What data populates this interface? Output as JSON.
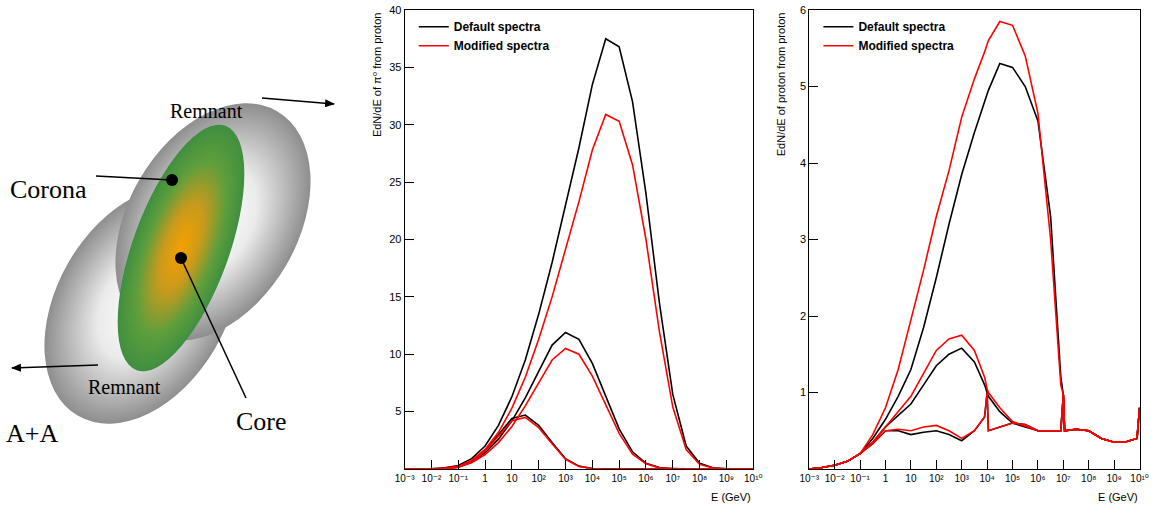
{
  "diagram": {
    "labels": {
      "corona": "Corona",
      "remnant_upper": "Remnant",
      "remnant_lower": "Remnant",
      "core": "Core",
      "collision": "A+A"
    }
  },
  "chart_data": [
    {
      "type": "line",
      "xlabel": "E (GeV)",
      "ylabel": "EdN/dE of π⁰ from proton",
      "log": "x",
      "grid": false,
      "legend": "upper left",
      "xlim": [
        0.001,
        10000000000
      ],
      "ylim": [
        0,
        40
      ],
      "xticks": [
        {
          "value": 0.001,
          "label": "10⁻³"
        },
        {
          "value": 0.01,
          "label": "10⁻²"
        },
        {
          "value": 0.1,
          "label": "10⁻¹"
        },
        1,
        10,
        {
          "value": 100,
          "label": "10²"
        },
        {
          "value": 1000,
          "label": "10³"
        },
        {
          "value": 10000,
          "label": "10⁴"
        },
        {
          "value": 100000,
          "label": "10⁵"
        },
        {
          "value": 1000000,
          "label": "10⁶"
        },
        {
          "value": 10000000,
          "label": "10⁷"
        },
        {
          "value": 100000000,
          "label": "10⁸"
        },
        {
          "value": 1000000000,
          "label": "10⁹"
        },
        {
          "value": 10000000000,
          "label": "10¹⁰"
        }
      ],
      "yticks": [
        5,
        10,
        15,
        20,
        25,
        30,
        35,
        40
      ],
      "x": [
        0.001,
        0.00316,
        0.01,
        0.0316,
        0.1,
        0.316,
        1,
        3.16,
        10,
        31.6,
        100,
        316,
        1000,
        3162,
        10000,
        31623,
        100000,
        316228,
        1000000,
        3162278,
        10000000,
        31622777,
        100000000,
        316227766,
        1000000000,
        3162277660,
        10000000000
      ],
      "series": [
        {
          "name": "Default spectra",
          "color": "#000000",
          "values": [
            0,
            0,
            0.02,
            0.1,
            0.3,
            0.9,
            2,
            3.8,
            6.3,
            9.5,
            13.5,
            18,
            23,
            28,
            33.5,
            37.5,
            36.8,
            32,
            24,
            14.5,
            6.5,
            2,
            0.5,
            0.1,
            0.02,
            0,
            0
          ]
        },
        {
          "name": "Default spectra",
          "color": "#000000",
          "values": [
            0,
            0,
            0.01,
            0.05,
            0.2,
            0.6,
            1.4,
            2.6,
            4.2,
            6.2,
            8.5,
            10.8,
            11.9,
            11.3,
            9.2,
            6.3,
            3.5,
            1.5,
            0.5,
            0.12,
            0.02,
            0,
            0,
            0,
            0,
            0,
            0
          ]
        },
        {
          "name": "Default spectra",
          "color": "#000000",
          "values": [
            0,
            0,
            0,
            0.02,
            0.15,
            0.6,
            1.6,
            3,
            4.4,
            4.7,
            3.8,
            2.3,
            0.9,
            0.25,
            0.04,
            0,
            0,
            0,
            0,
            0,
            0,
            0,
            0,
            0,
            0,
            0,
            0
          ]
        },
        {
          "name": "Modified spectra",
          "color": "#ff0000",
          "values": [
            0,
            0,
            0.02,
            0.08,
            0.25,
            0.75,
            1.7,
            3.2,
            5.3,
            8,
            11.3,
            15,
            19.2,
            23.3,
            27.8,
            30.9,
            30.3,
            26.5,
            20,
            12,
            5.4,
            1.7,
            0.4,
            0.08,
            0.02,
            0,
            0
          ]
        },
        {
          "name": "Modified spectra",
          "color": "#ff0000",
          "values": [
            0,
            0,
            0.01,
            0.05,
            0.18,
            0.55,
            1.25,
            2.3,
            3.7,
            5.5,
            7.5,
            9.5,
            10.5,
            10,
            8.1,
            5.6,
            3.1,
            1.3,
            0.45,
            0.1,
            0.02,
            0,
            0,
            0,
            0,
            0,
            0
          ]
        },
        {
          "name": "Modified spectra",
          "color": "#ff0000",
          "values": [
            0,
            0,
            0,
            0.02,
            0.15,
            0.58,
            1.55,
            2.9,
            4.2,
            4.5,
            3.6,
            2.2,
            0.85,
            0.23,
            0.04,
            0,
            0,
            0,
            0,
            0,
            0,
            0,
            0,
            0,
            0,
            0,
            0
          ]
        }
      ]
    },
    {
      "type": "line",
      "xlabel": "E (GeV)",
      "ylabel": "EdN/dE of proton from proton",
      "log": "x",
      "grid": false,
      "legend": "upper left",
      "xlim": [
        0.001,
        10000000000
      ],
      "ylim": [
        0,
        6
      ],
      "xticks": [
        {
          "value": 0.001,
          "label": "10⁻³"
        },
        {
          "value": 0.01,
          "label": "10⁻²"
        },
        {
          "value": 0.1,
          "label": "10⁻¹"
        },
        1,
        10,
        {
          "value": 100,
          "label": "10²"
        },
        {
          "value": 1000,
          "label": "10³"
        },
        {
          "value": 10000,
          "label": "10⁴"
        },
        {
          "value": 100000,
          "label": "10⁵"
        },
        {
          "value": 1000000,
          "label": "10⁶"
        },
        {
          "value": 10000000,
          "label": "10⁷"
        },
        {
          "value": 100000000,
          "label": "10⁸"
        },
        {
          "value": 1000000000,
          "label": "10⁹"
        },
        {
          "value": 10000000000,
          "label": "10¹⁰"
        }
      ],
      "yticks": [
        1,
        2,
        3,
        4,
        5,
        6
      ],
      "x": [
        0.001,
        0.00316,
        0.01,
        0.0316,
        0.1,
        0.316,
        1,
        3.16,
        10,
        31.6,
        100,
        316,
        1000,
        3162,
        7943,
        10000,
        11220,
        31623,
        100000,
        316228,
        1000000,
        3162278,
        7943282,
        10000000,
        11220185,
        31622777,
        100000000,
        316227766,
        1000000000,
        3162277660,
        7943282347,
        10000000000
      ],
      "series": [
        {
          "name": "Default spectra",
          "color": "#000000",
          "values": [
            0,
            0.02,
            0.05,
            0.1,
            0.2,
            0.4,
            0.65,
            0.95,
            1.3,
            1.85,
            2.5,
            3.2,
            3.85,
            4.4,
            4.8,
            4.9,
            4.95,
            5.3,
            5.25,
            5.0,
            4.55,
            3.3,
            1.2,
            0.97,
            0.5,
            0.52,
            0.5,
            0.4,
            0.35,
            0.36,
            0.4,
            0.8
          ]
        },
        {
          "name": "Default spectra",
          "color": "#000000",
          "values": [
            0,
            0.02,
            0.05,
            0.1,
            0.2,
            0.35,
            0.55,
            0.7,
            0.85,
            1.1,
            1.35,
            1.5,
            1.58,
            1.4,
            1.1,
            1.0,
            0.95,
            0.75,
            0.6,
            0.55,
            0.5,
            0.5,
            0.5,
            0.97,
            0.5,
            0.52,
            0.5,
            0.4,
            0.35,
            0.36,
            0.4,
            0.8
          ]
        },
        {
          "name": "Default spectra",
          "color": "#000000",
          "values": [
            0,
            0.02,
            0.05,
            0.1,
            0.2,
            0.33,
            0.5,
            0.5,
            0.45,
            0.48,
            0.5,
            0.45,
            0.37,
            0.5,
            0.68,
            1.0,
            0.5,
            0.55,
            0.6,
            0.58,
            0.5,
            0.5,
            0.5,
            0.97,
            0.5,
            0.52,
            0.5,
            0.4,
            0.35,
            0.36,
            0.4,
            0.8
          ]
        },
        {
          "name": "Modified spectra",
          "color": "#ff0000",
          "values": [
            0,
            0.02,
            0.05,
            0.1,
            0.2,
            0.45,
            0.8,
            1.3,
            1.95,
            2.6,
            3.3,
            3.9,
            4.6,
            5.1,
            5.45,
            5.55,
            5.6,
            5.85,
            5.8,
            5.4,
            4.65,
            3.0,
            1.1,
            0.97,
            0.5,
            0.52,
            0.5,
            0.4,
            0.35,
            0.36,
            0.4,
            0.8
          ]
        },
        {
          "name": "Modified spectra",
          "color": "#ff0000",
          "values": [
            0,
            0.02,
            0.05,
            0.1,
            0.2,
            0.35,
            0.55,
            0.75,
            0.95,
            1.25,
            1.55,
            1.7,
            1.75,
            1.55,
            1.2,
            1.05,
            1.0,
            0.8,
            0.62,
            0.56,
            0.5,
            0.5,
            0.5,
            0.97,
            0.5,
            0.52,
            0.5,
            0.4,
            0.35,
            0.36,
            0.4,
            0.8
          ]
        },
        {
          "name": "Modified spectra",
          "color": "#ff0000",
          "values": [
            0,
            0.02,
            0.05,
            0.1,
            0.2,
            0.33,
            0.5,
            0.52,
            0.5,
            0.55,
            0.57,
            0.5,
            0.4,
            0.5,
            0.68,
            1.0,
            0.5,
            0.55,
            0.6,
            0.58,
            0.5,
            0.5,
            0.5,
            0.97,
            0.5,
            0.52,
            0.5,
            0.4,
            0.35,
            0.36,
            0.4,
            0.8
          ]
        }
      ]
    }
  ]
}
